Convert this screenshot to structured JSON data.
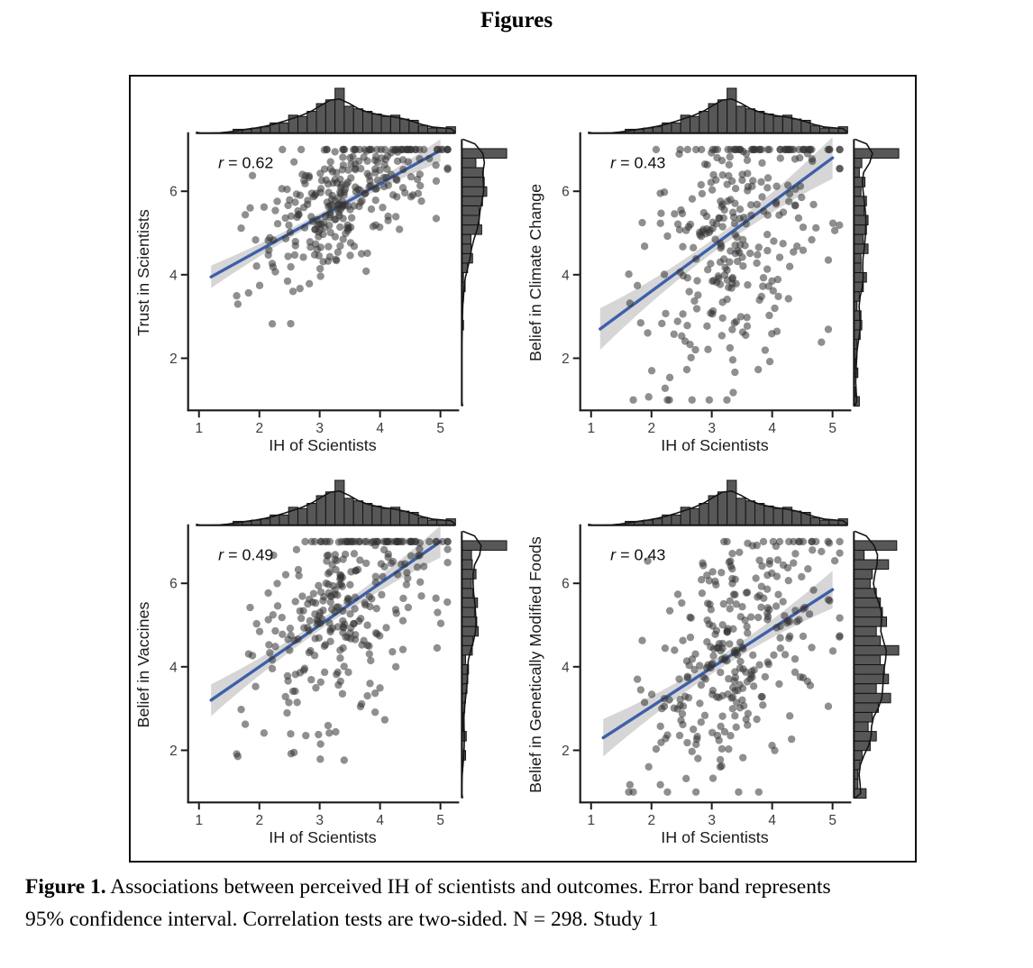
{
  "page": {
    "heading": "Figures",
    "caption": {
      "label": "Figure 1.",
      "line1": "Associations between perceived IH of scientists and outcomes. Error band represents",
      "line2": "95% confidence interval. Correlation tests are two-sided. N = 298. Study 1"
    }
  },
  "chart_data": {
    "type": "scatter",
    "layout": "2x2 joint scatterplots, each with top and right marginal histograms plus density curves",
    "n": 298,
    "xlabel": "IH of Scientists",
    "x_ticks": [
      1,
      2,
      3,
      4,
      5
    ],
    "y_ticks": [
      2,
      4,
      6
    ],
    "x_range": [
      0.82,
      5.28
    ],
    "y_range": [
      0.75,
      7.35
    ],
    "colors": {
      "point": "#333333",
      "line": "#3E5FA9",
      "band": "#CFCFCF",
      "bar_fill": "#575757",
      "bar_stroke": "#141414",
      "axis": "#1A1A1A",
      "tick_label": "#3D3D3D"
    },
    "sim_x": {
      "mean": 3.45,
      "sd": 0.8,
      "min": 1.02,
      "max": 5.12,
      "seed": 7
    },
    "panels": [
      {
        "ylabel": "Trust in Scientists",
        "r": 0.62,
        "r_var": "r",
        "r_rest": " = 0.62",
        "line": {
          "x1": 1.2,
          "y1": 3.95,
          "x2": 5.0,
          "y2": 6.98
        },
        "band": {
          "mid": 0.09,
          "edge": 0.27
        },
        "sim": {
          "mean": 5.78,
          "slope": 0.79,
          "noise_sd": 0.8,
          "seed": 13
        }
      },
      {
        "ylabel": "Belief in Climate Change",
        "r": 0.43,
        "r_var": "r",
        "r_rest": " = 0.43",
        "line": {
          "x1": 1.15,
          "y1": 2.7,
          "x2": 5.0,
          "y2": 6.8
        },
        "band": {
          "mid": 0.16,
          "edge": 0.5
        },
        "sim": {
          "mean": 5.15,
          "slope": 1.0,
          "noise_sd": 1.7,
          "seed": 17
        }
      },
      {
        "ylabel": "Belief in Vaccines",
        "r": 0.49,
        "r_var": "r",
        "r_rest": " = 0.49",
        "line": {
          "x1": 1.2,
          "y1": 3.2,
          "x2": 5.0,
          "y2": 7.0
        },
        "band": {
          "mid": 0.12,
          "edge": 0.38
        },
        "sim": {
          "mean": 5.45,
          "slope": 1.0,
          "noise_sd": 1.4,
          "seed": 23
        }
      },
      {
        "ylabel": "Belief in Genetically Modified Foods",
        "r": 0.43,
        "r_var": "r",
        "r_rest": " = 0.43",
        "line": {
          "x1": 1.2,
          "y1": 2.3,
          "x2": 5.0,
          "y2": 5.85
        },
        "band": {
          "mid": 0.15,
          "edge": 0.45
        },
        "sim": {
          "mean": 4.37,
          "slope": 0.92,
          "noise_sd": 1.5,
          "seed": 29
        }
      }
    ]
  }
}
